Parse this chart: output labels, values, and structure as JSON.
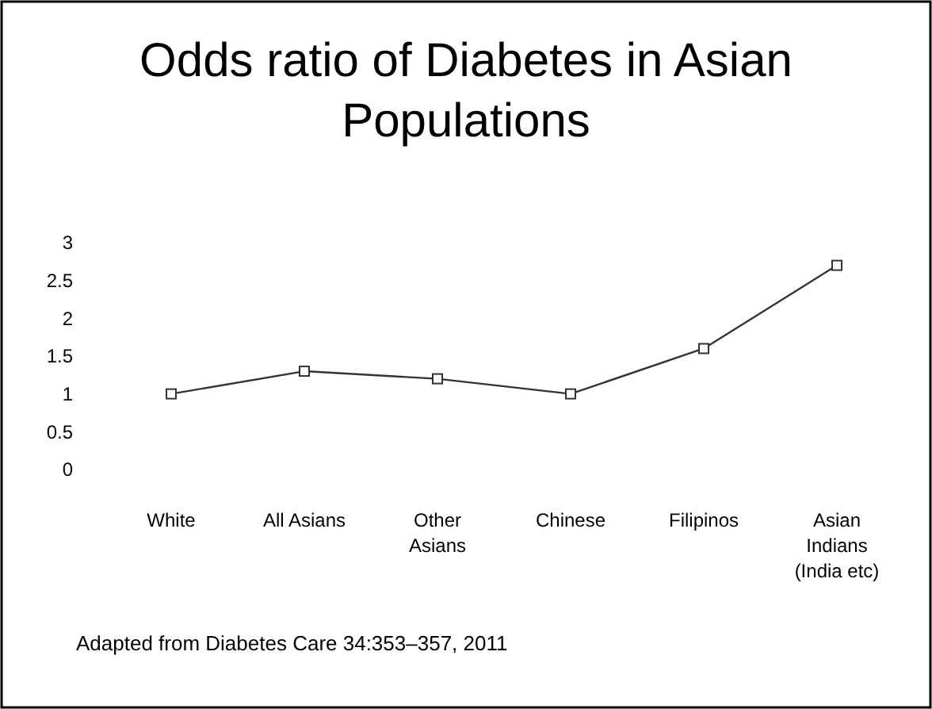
{
  "chart_data": {
    "type": "line",
    "title": "Odds ratio of Diabetes in Asian Populations",
    "categories": [
      "White",
      "All Asians",
      "Other\nAsians",
      "Chinese",
      "Filipinos",
      "Asian\nIndians\n(India etc)"
    ],
    "series": [
      {
        "color": "#333333",
        "values": [
          1.0,
          1.3,
          1.2,
          1.0,
          1.6,
          2.7
        ]
      }
    ],
    "ylim": [
      0,
      3
    ],
    "yticks": [
      0,
      0.5,
      1,
      1.5,
      2,
      2.5,
      3
    ],
    "grid": false,
    "marker": "square",
    "line_style": "solid",
    "annotations": [
      "Adapted from Diabetes Care 34:353–357, 2011"
    ]
  }
}
